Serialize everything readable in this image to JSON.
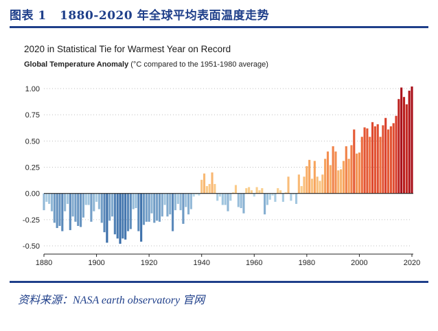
{
  "figure": {
    "label": "图表 1",
    "title": "1880-2020 年全球平均表面温度走势",
    "source": "资料来源：NASA earth observatory 官网"
  },
  "chart_data": {
    "type": "bar",
    "title": "2020 in Statistical Tie for Warmest Year on Record",
    "subtitle_bold": "Global Temperature Anomaly",
    "subtitle_rest": " (°C compared to the 1951-1980 average)",
    "xlabel": "",
    "ylabel": "",
    "xlim": [
      1880,
      2020
    ],
    "ylim": [
      -0.55,
      1.1
    ],
    "x_ticks": [
      1880,
      1900,
      1920,
      1940,
      1960,
      1980,
      2000,
      2020
    ],
    "y_ticks": [
      1.0,
      0.75,
      0.5,
      0.25,
      0.0,
      -0.25,
      -0.5
    ],
    "y_tick_labels": [
      "1.00",
      "0.75",
      "0.50",
      "0.25",
      "0.00",
      "-0.25",
      "-0.50"
    ],
    "grid": "horizontal dotted",
    "x": [
      1880,
      1881,
      1882,
      1883,
      1884,
      1885,
      1886,
      1887,
      1888,
      1889,
      1890,
      1891,
      1892,
      1893,
      1894,
      1895,
      1896,
      1897,
      1898,
      1899,
      1900,
      1901,
      1902,
      1903,
      1904,
      1905,
      1906,
      1907,
      1908,
      1909,
      1910,
      1911,
      1912,
      1913,
      1914,
      1915,
      1916,
      1917,
      1918,
      1919,
      1920,
      1921,
      1922,
      1923,
      1924,
      1925,
      1926,
      1927,
      1928,
      1929,
      1930,
      1931,
      1932,
      1933,
      1934,
      1935,
      1936,
      1937,
      1938,
      1939,
      1940,
      1941,
      1942,
      1943,
      1944,
      1945,
      1946,
      1947,
      1948,
      1949,
      1950,
      1951,
      1952,
      1953,
      1954,
      1955,
      1956,
      1957,
      1958,
      1959,
      1960,
      1961,
      1962,
      1963,
      1964,
      1965,
      1966,
      1967,
      1968,
      1969,
      1970,
      1971,
      1972,
      1973,
      1974,
      1975,
      1976,
      1977,
      1978,
      1979,
      1980,
      1981,
      1982,
      1983,
      1984,
      1985,
      1986,
      1987,
      1988,
      1989,
      1990,
      1991,
      1992,
      1993,
      1994,
      1995,
      1996,
      1997,
      1998,
      1999,
      2000,
      2001,
      2002,
      2003,
      2004,
      2005,
      2006,
      2007,
      2008,
      2009,
      2010,
      2011,
      2012,
      2013,
      2014,
      2015,
      2016,
      2017,
      2018,
      2019,
      2020
    ],
    "values": [
      -0.16,
      -0.08,
      -0.1,
      -0.17,
      -0.28,
      -0.33,
      -0.31,
      -0.36,
      -0.17,
      -0.1,
      -0.35,
      -0.22,
      -0.27,
      -0.31,
      -0.32,
      -0.23,
      -0.11,
      -0.11,
      -0.27,
      -0.17,
      -0.08,
      -0.15,
      -0.28,
      -0.37,
      -0.47,
      -0.26,
      -0.22,
      -0.39,
      -0.43,
      -0.48,
      -0.43,
      -0.44,
      -0.36,
      -0.34,
      -0.15,
      -0.14,
      -0.36,
      -0.46,
      -0.3,
      -0.27,
      -0.27,
      -0.19,
      -0.28,
      -0.26,
      -0.27,
      -0.22,
      -0.11,
      -0.22,
      -0.2,
      -0.36,
      -0.16,
      -0.1,
      -0.16,
      -0.29,
      -0.13,
      -0.2,
      -0.15,
      -0.03,
      -0.01,
      -0.02,
      0.13,
      0.19,
      0.07,
      0.09,
      0.2,
      0.09,
      -0.07,
      -0.03,
      -0.11,
      -0.11,
      -0.17,
      -0.07,
      0.01,
      0.08,
      -0.13,
      -0.14,
      -0.19,
      0.05,
      0.06,
      0.03,
      -0.03,
      0.06,
      0.03,
      0.05,
      -0.2,
      -0.11,
      -0.06,
      -0.02,
      -0.08,
      0.05,
      0.03,
      -0.08,
      0.01,
      0.16,
      -0.07,
      -0.01,
      -0.1,
      0.18,
      0.07,
      0.16,
      0.26,
      0.32,
      0.14,
      0.31,
      0.16,
      0.12,
      0.18,
      0.33,
      0.4,
      0.27,
      0.45,
      0.4,
      0.22,
      0.23,
      0.31,
      0.45,
      0.33,
      0.46,
      0.61,
      0.38,
      0.39,
      0.54,
      0.63,
      0.62,
      0.54,
      0.68,
      0.64,
      0.66,
      0.54,
      0.65,
      0.72,
      0.61,
      0.64,
      0.67,
      0.74,
      0.9,
      1.01,
      0.92,
      0.85,
      0.98,
      1.02
    ]
  }
}
